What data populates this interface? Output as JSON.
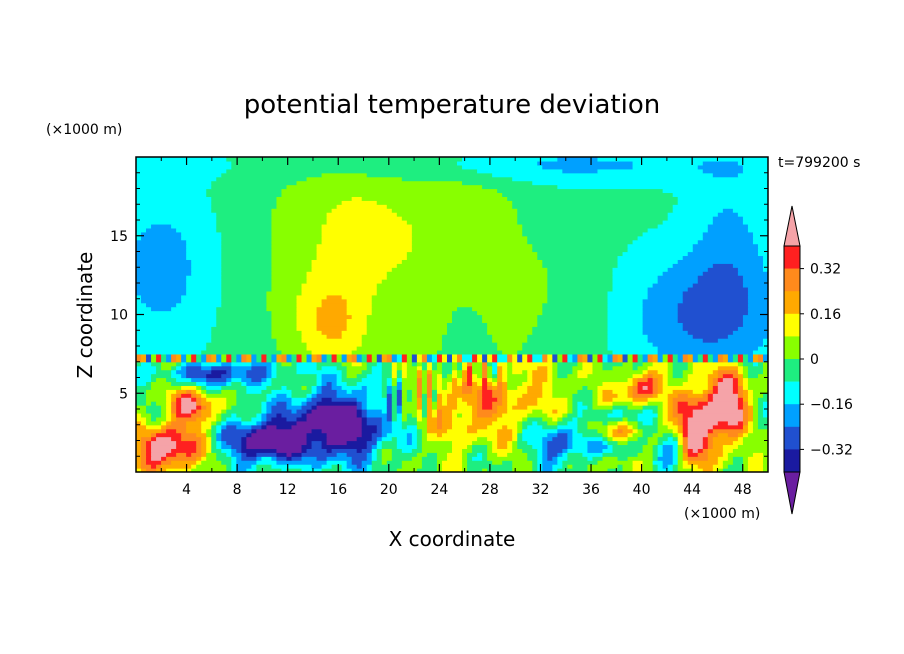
{
  "chart_data": {
    "type": "heatmap",
    "title": "potential temperature deviation",
    "xlabel": "X coordinate",
    "ylabel": "Z coordinate",
    "x_unit": "(×1000 m)",
    "y_unit": "(×1000 m)",
    "time_label": "t=799200 s",
    "xlim": [
      0,
      50
    ],
    "ylim": [
      0,
      20
    ],
    "xticks": [
      "4",
      "8",
      "12",
      "16",
      "20",
      "24",
      "28",
      "32",
      "36",
      "40",
      "44",
      "48"
    ],
    "xtick_values": [
      4,
      8,
      12,
      16,
      20,
      24,
      28,
      32,
      36,
      40,
      44,
      48
    ],
    "yticks": [
      "5",
      "10",
      "15"
    ],
    "ytick_values": [
      5,
      10,
      15
    ],
    "colorbar": {
      "labels": [
        "0.32",
        "0.16",
        "0",
        "−0.16",
        "−0.32"
      ],
      "label_values": [
        0.32,
        0.16,
        0,
        -0.16,
        -0.32
      ],
      "levels": [
        {
          "min": 0.4,
          "color": "#f5a3a8"
        },
        {
          "min": 0.32,
          "color": "#ff2020"
        },
        {
          "min": 0.24,
          "color": "#ff8a1c"
        },
        {
          "min": 0.16,
          "color": "#ffa900"
        },
        {
          "min": 0.08,
          "color": "#ffff00"
        },
        {
          "min": 0.0,
          "color": "#88ff00"
        },
        {
          "min": -0.08,
          "color": "#1eee80"
        },
        {
          "min": -0.16,
          "color": "#00ffff"
        },
        {
          "min": -0.24,
          "color": "#00a0ff"
        },
        {
          "min": -0.32,
          "color": "#2050d0"
        },
        {
          "min": -0.4,
          "color": "#1a1aa0"
        },
        {
          "min": -999,
          "color": "#6a1ea0"
        }
      ]
    }
  }
}
